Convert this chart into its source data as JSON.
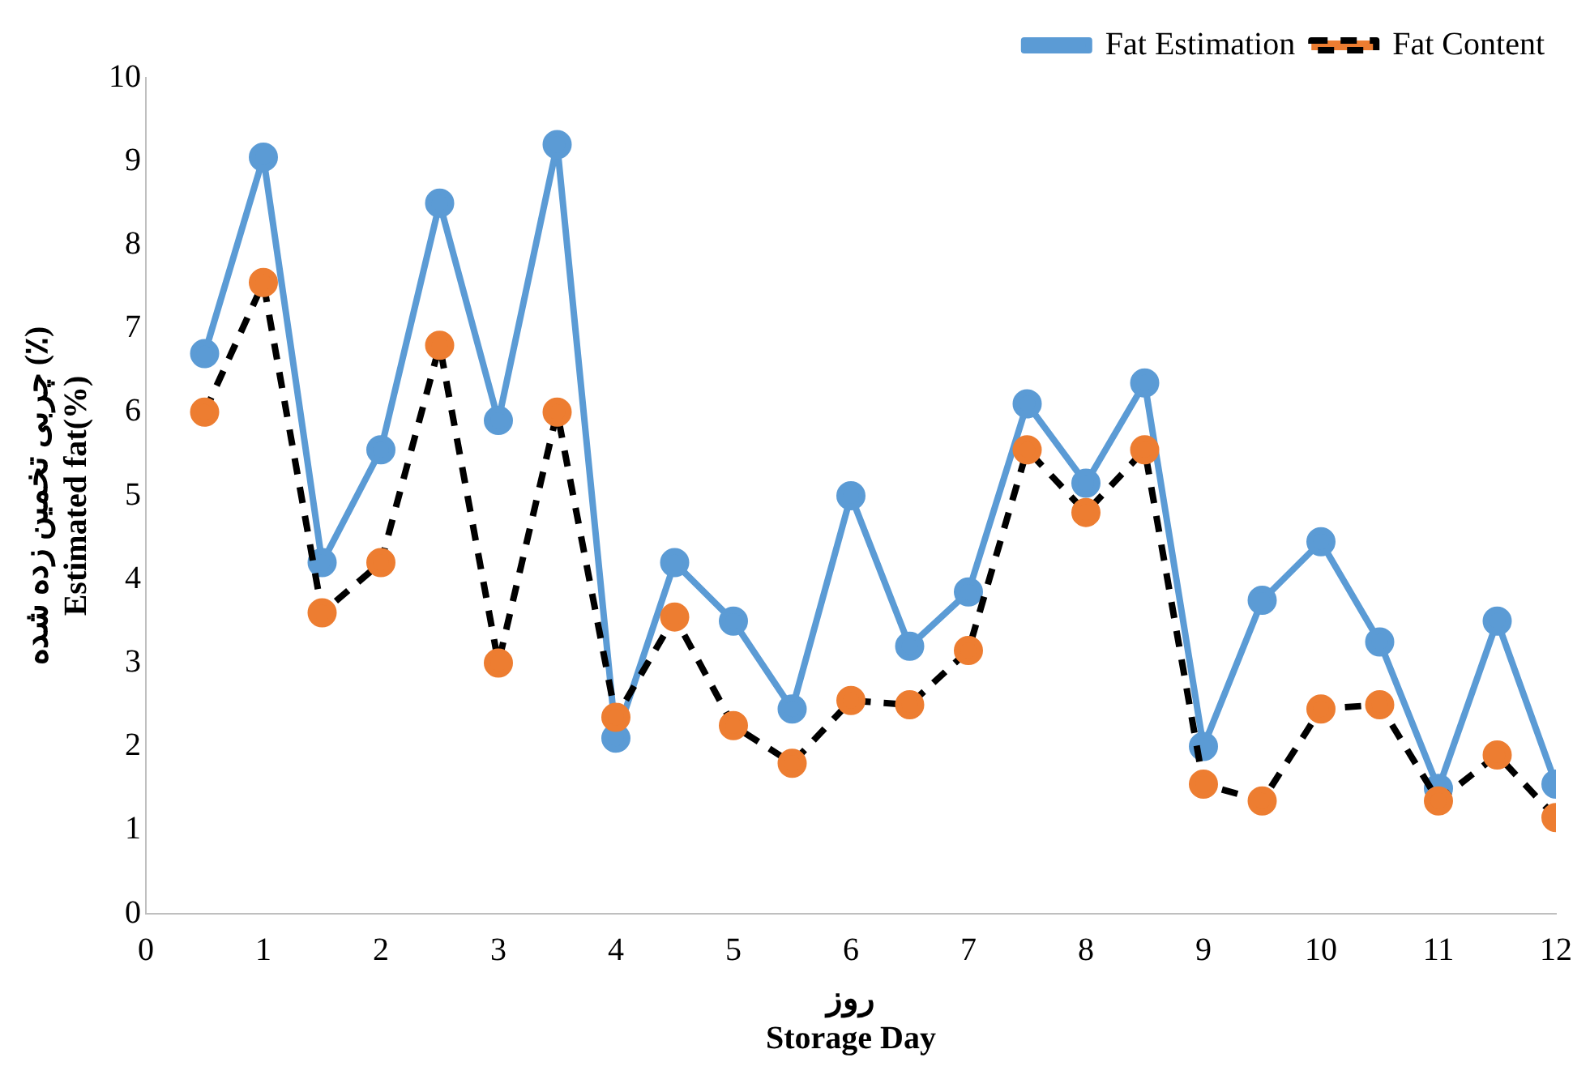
{
  "chart_data": {
    "type": "line",
    "xlabel": "روز\nStorage Day",
    "ylabel": "چربی تخمین زده شده (٪)\nEstimated fat(%)",
    "x": [
      0.5,
      1,
      1.5,
      2,
      2.5,
      3,
      3.5,
      4,
      4.5,
      5,
      5.5,
      6,
      6.5,
      7,
      7.5,
      8,
      8.5,
      9,
      9.5,
      10,
      10.5,
      11,
      11.5,
      12
    ],
    "series": [
      {
        "name": "Fat Estimation",
        "color": "#5b9bd5",
        "line_style": "solid",
        "values": [
          6.7,
          9.05,
          4.2,
          5.55,
          8.5,
          5.9,
          9.2,
          2.1,
          4.2,
          3.5,
          2.45,
          5.0,
          3.2,
          3.85,
          6.1,
          5.15,
          6.35,
          2.0,
          3.75,
          4.45,
          3.25,
          1.5,
          3.5,
          1.55
        ]
      },
      {
        "name": "Fat Content",
        "color": "#ed7d31",
        "line_style": "dashed",
        "values": [
          6.0,
          7.55,
          3.6,
          4.2,
          6.8,
          3.0,
          6.0,
          2.35,
          3.55,
          2.25,
          1.8,
          2.55,
          2.5,
          3.15,
          5.55,
          4.8,
          5.55,
          1.55,
          1.35,
          2.45,
          2.5,
          1.35,
          1.9,
          1.15
        ]
      }
    ],
    "xlim": [
      0,
      12
    ],
    "xticks": [
      0,
      1,
      2,
      3,
      4,
      5,
      6,
      7,
      8,
      9,
      10,
      11,
      12
    ],
    "ylim": [
      0,
      10
    ],
    "yticks": [
      0,
      1,
      2,
      3,
      4,
      5,
      6,
      7,
      8,
      9,
      10
    ],
    "grid": false,
    "legend": "top right",
    "marker": "circle"
  }
}
